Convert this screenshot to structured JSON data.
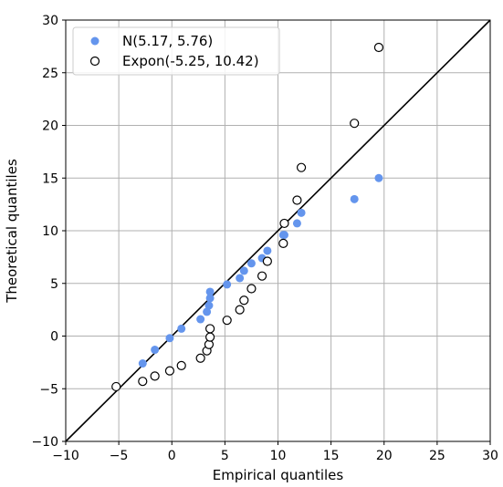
{
  "chart_data": {
    "type": "scatter",
    "title": "",
    "xlabel": "Empirical quantiles",
    "ylabel": "Theoretical quantiles",
    "xlim": [
      -10,
      30
    ],
    "ylim": [
      -10,
      30
    ],
    "xticks": [
      -10,
      -5,
      0,
      5,
      10,
      15,
      20,
      25,
      30
    ],
    "yticks": [
      -10,
      -5,
      0,
      5,
      10,
      15,
      20,
      25,
      30
    ],
    "xtick_labels": [
      "−10",
      "−5",
      "0",
      "5",
      "10",
      "15",
      "20",
      "25",
      "30"
    ],
    "ytick_labels": [
      "−10",
      "−5",
      "0",
      "5",
      "10",
      "15",
      "20",
      "25",
      "30"
    ],
    "grid": true,
    "legend_position": "top-left",
    "reference_line": {
      "from": [
        -10,
        -10
      ],
      "to": [
        30,
        30
      ],
      "color": "#000000"
    },
    "series": [
      {
        "name": "N(5.17, 5.76)",
        "marker": "filled-circle",
        "color": "#6495ed",
        "x": [
          -5.25,
          -2.75,
          -1.6,
          -0.2,
          0.9,
          2.7,
          3.3,
          3.5,
          3.6,
          3.6,
          5.2,
          6.4,
          6.8,
          7.5,
          8.5,
          9.0,
          10.5,
          10.6,
          11.8,
          12.2,
          17.2,
          19.5
        ],
        "y": [
          -4.8,
          -2.6,
          -1.3,
          -0.2,
          0.7,
          1.6,
          2.3,
          2.9,
          3.6,
          4.2,
          4.9,
          5.5,
          6.2,
          6.9,
          7.4,
          8.1,
          9.6,
          9.6,
          10.7,
          11.7,
          13.0,
          15.0
        ]
      },
      {
        "name": "Expon(-5.25, 10.42)",
        "marker": "hollow-circle",
        "color": "#000000",
        "x": [
          -5.25,
          -2.75,
          -1.6,
          -0.2,
          0.9,
          2.7,
          3.3,
          3.5,
          3.6,
          3.6,
          5.2,
          6.4,
          6.8,
          7.5,
          8.5,
          9.0,
          10.5,
          10.6,
          11.8,
          12.2,
          17.2,
          19.5
        ],
        "y": [
          -4.8,
          -4.3,
          -3.8,
          -3.3,
          -2.8,
          -2.1,
          -1.4,
          -0.8,
          -0.1,
          0.7,
          1.5,
          2.5,
          3.4,
          4.5,
          5.7,
          7.1,
          8.8,
          10.7,
          12.9,
          16.0,
          20.2,
          27.4
        ]
      }
    ]
  }
}
